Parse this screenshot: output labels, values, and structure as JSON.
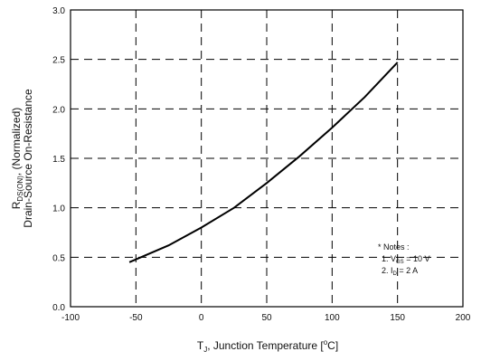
{
  "chart_data": {
    "type": "line",
    "x_axis": {
      "label_main": "T",
      "label_sub": "J",
      "label_rest": ", Junction Temperature [",
      "label_deg": "o",
      "label_unit": "C]",
      "ticks": [
        "-100",
        "-50",
        "0",
        "50",
        "100",
        "150",
        "200"
      ],
      "range": [
        -100,
        200
      ]
    },
    "y_axis": {
      "label_line1_main": "R",
      "label_line1_sub": "DS(ON)",
      "label_line1_rest": ", (Normalized)",
      "label_line2": "Drain-Source On-Resistance",
      "ticks": [
        "0.0",
        "0.5",
        "1.0",
        "1.5",
        "2.0",
        "2.5",
        "3.0"
      ],
      "range": [
        0,
        3
      ]
    },
    "grid": true,
    "series": [
      {
        "x": [
          -55,
          -25,
          0,
          25,
          50,
          75,
          100,
          125,
          150
        ],
        "y": [
          0.45,
          0.62,
          0.8,
          1.0,
          1.25,
          1.52,
          1.81,
          2.12,
          2.47
        ]
      }
    ],
    "notes": {
      "title": "* Notes :",
      "line1_main": "1. V",
      "line1_sub": "GS",
      "line1_rest": " = 10 V",
      "line2_main": "2. I",
      "line2_sub": "D",
      "line2_rest": " = 2 A"
    }
  }
}
